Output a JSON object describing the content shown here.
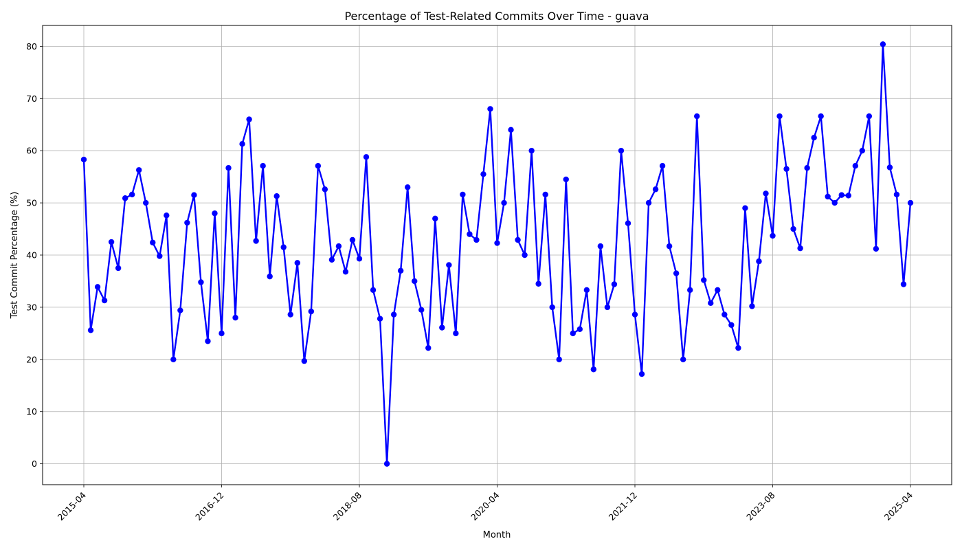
{
  "chart_data": {
    "type": "line",
    "title": "Percentage of Test-Related Commits Over Time - guava",
    "xlabel": "Month",
    "ylabel": "Test Commit Percentage (%)",
    "x_tick_labels": [
      "2015-04",
      "2016-12",
      "2018-08",
      "2020-04",
      "2021-12",
      "2023-08",
      "2025-04"
    ],
    "y_ticks": [
      0,
      10,
      20,
      30,
      40,
      50,
      60,
      70,
      80
    ],
    "ylim": [
      -4,
      84
    ],
    "grid": true,
    "colors": {
      "line": "#0000ff",
      "grid": "#b0b0b0",
      "axes": "#000000"
    },
    "series": [
      {
        "x_start": "2015-04",
        "x_end": "2025-04",
        "values": [
          58.3,
          25.6,
          33.9,
          31.3,
          42.5,
          37.5,
          50.9,
          51.6,
          56.3,
          50.0,
          42.4,
          39.8,
          47.6,
          20.0,
          29.4,
          46.2,
          51.5,
          34.8,
          23.5,
          48.0,
          25.0,
          56.7,
          28.0,
          61.3,
          66.0,
          42.7,
          57.1,
          35.9,
          51.3,
          41.5,
          28.6,
          38.5,
          19.7,
          29.2,
          57.1,
          52.6,
          39.1,
          41.7,
          36.8,
          42.9,
          39.3,
          58.8,
          33.3,
          27.8,
          0.0,
          28.6,
          37.0,
          53.0,
          35.0,
          29.5,
          22.2,
          47.0,
          26.1,
          38.1,
          25.0,
          51.6,
          44.0,
          42.9,
          55.5,
          68.0,
          42.3,
          50.0,
          64.0,
          42.9,
          40.0,
          60.0,
          34.5,
          51.6,
          30.0,
          20.0,
          54.5,
          25.0,
          25.8,
          33.3,
          18.1,
          41.7,
          30.0,
          34.4,
          60.0,
          46.1,
          28.6,
          17.2,
          50.0,
          52.6,
          57.1,
          41.7,
          36.5,
          20.0,
          33.3,
          66.6,
          35.2,
          30.8,
          33.3,
          28.6,
          26.6,
          22.2,
          49.0,
          30.2,
          38.8,
          51.8,
          43.7,
          66.6,
          56.5,
          45.0,
          41.3,
          56.7,
          62.5,
          66.6,
          51.2,
          50.0,
          51.5,
          51.4,
          57.1,
          60.0,
          66.6,
          41.2,
          80.4,
          56.8,
          51.6,
          34.4,
          50.0
        ]
      }
    ]
  }
}
